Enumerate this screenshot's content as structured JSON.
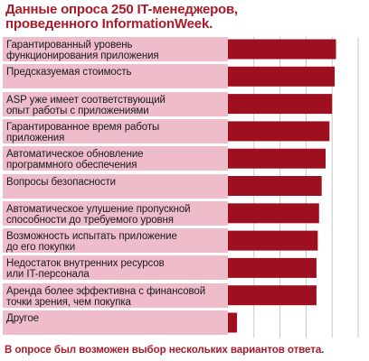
{
  "chart_data": {
    "type": "bar",
    "orientation": "horizontal",
    "title": "Данные опроса 250 IT-менеджеров,\nпроведенного InformationWeek.",
    "note": "В опросе был возможен выбор нескольких вариантов ответа.",
    "categories": [
      "Гарантированный уровень\nфункционирования приложения",
      "Предсказуемая стоимость",
      "ASP уже имеет соответствующий\nопыт работы с приложениями",
      "Гарантированное время работы\nприложения",
      "Автоматическое обновление\nпрограммного обеспечения",
      "Вопросы безопасности",
      "Автоматическое улушение пропускной\nспособности до требуемого уровня",
      "Возможность испытать приложение\nдо его покупки",
      "Недостаток внутренних ресурсов\nили IT-персонала",
      "Аренда более эффективна с финансовой\nточки зрения, чем покупка",
      "Другое"
    ],
    "values": [
      83,
      82,
      80,
      78,
      75,
      72,
      70,
      69,
      68,
      68,
      7
    ],
    "xlim": [
      0,
      100
    ],
    "xticks": [
      "20",
      "40",
      "60",
      "80",
      "100"
    ],
    "grid": true,
    "colors": {
      "bar": "#9e1020",
      "label_bg": "#efbdc9",
      "title": "#ad1a2a",
      "grid": "#c9c9c9"
    }
  }
}
